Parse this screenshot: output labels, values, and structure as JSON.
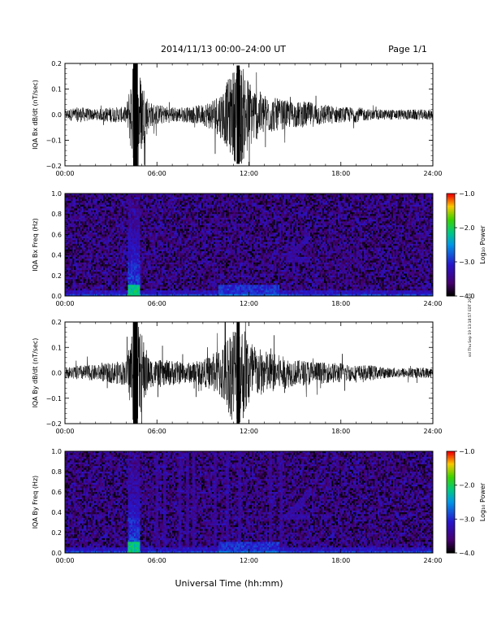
{
  "header": {
    "title": "2014/11/13  00:00–24:00 UT",
    "page": "Page 1/1"
  },
  "footer": {
    "xlabel": "Universal Time (hh:mm)",
    "stamp": "ssl Thu Sep 19 13:18:57 EDT 2019"
  },
  "colors": {
    "ink": "#000000",
    "spec_bg": "#3a0a62",
    "spec_mid": "#1a3ad8",
    "spec_hot": "#00d0c0"
  },
  "chart_data": [
    {
      "type": "line",
      "ylabel": "IQA Bx dB/dt (nT/sec)",
      "xlim": [
        0,
        24
      ],
      "ylim": [
        -0.2,
        0.2
      ],
      "xticks": [
        "00:00",
        "06:00",
        "12:00",
        "18:00",
        "24:00"
      ],
      "yticks": [
        "0.2",
        "0.1",
        "0.0",
        "−0.1",
        "−0.2"
      ],
      "x": [
        0,
        1,
        2,
        3,
        4,
        4.5,
        5,
        5.5,
        6,
        7,
        8,
        9,
        10,
        10.5,
        11,
        11.5,
        12,
        12.5,
        13,
        14,
        15,
        16,
        17,
        18,
        19,
        20,
        21,
        22,
        23,
        24
      ],
      "amplitude": [
        0.02,
        0.03,
        0.02,
        0.03,
        0.03,
        0.22,
        0.15,
        0.05,
        0.04,
        0.03,
        0.03,
        0.04,
        0.08,
        0.12,
        0.18,
        0.2,
        0.14,
        0.1,
        0.08,
        0.06,
        0.05,
        0.05,
        0.04,
        0.03,
        0.03,
        0.02,
        0.02,
        0.02,
        0.02,
        0.02
      ]
    },
    {
      "type": "heatmap",
      "ylabel": "IQA Bx Freq (Hz)",
      "colorbar_label": "Log₁₀ Power",
      "colorbar_ticks": [
        "−1.0",
        "−2.0",
        "−3.0",
        "−4.0"
      ],
      "clim": [
        -4.0,
        -1.0
      ],
      "xlim": [
        0,
        24
      ],
      "ylim": [
        0,
        1.0
      ],
      "xticks": [
        "00:00",
        "06:00",
        "12:00",
        "18:00",
        "24:00"
      ],
      "yticks": [
        "1.0",
        "0.8",
        "0.6",
        "0.4",
        "0.2",
        "0.0"
      ],
      "features": [
        {
          "kind": "burst",
          "t": 4.5,
          "fmax": 1.0,
          "level": -2.6
        },
        {
          "kind": "lowband",
          "t0": 0,
          "t1": 24,
          "fmax": 0.05,
          "level": -3.0
        },
        {
          "kind": "lowband",
          "t0": 10,
          "t1": 14,
          "fmax": 0.1,
          "level": -2.8
        },
        {
          "kind": "rising_tone",
          "t0": 14.5,
          "t1": 16,
          "f0": 0.35,
          "f1": 0.6,
          "level": -3.2
        }
      ]
    },
    {
      "type": "line",
      "ylabel": "IQA By dB/dt (nT/sec)",
      "xlim": [
        0,
        24
      ],
      "ylim": [
        -0.2,
        0.2
      ],
      "xticks": [
        "00:00",
        "06:00",
        "12:00",
        "18:00",
        "24:00"
      ],
      "yticks": [
        "0.2",
        "0.1",
        "0.0",
        "−0.1",
        "−0.2"
      ],
      "x": [
        0,
        1,
        2,
        3,
        4,
        4.5,
        5,
        5.5,
        6,
        7,
        8,
        9,
        10,
        10.5,
        11,
        11.5,
        12,
        12.5,
        13,
        14,
        15,
        16,
        17,
        18,
        19,
        20,
        21,
        22,
        23,
        24
      ],
      "amplitude": [
        0.02,
        0.03,
        0.03,
        0.04,
        0.05,
        0.22,
        0.16,
        0.06,
        0.05,
        0.05,
        0.04,
        0.05,
        0.09,
        0.14,
        0.2,
        0.2,
        0.15,
        0.1,
        0.09,
        0.07,
        0.05,
        0.05,
        0.04,
        0.04,
        0.03,
        0.03,
        0.02,
        0.02,
        0.02,
        0.02
      ]
    },
    {
      "type": "heatmap",
      "ylabel": "IQA By Freq (Hz)",
      "colorbar_label": "Log₁₀ Power",
      "colorbar_ticks": [
        "−1.0",
        "−2.0",
        "−3.0",
        "−4.0"
      ],
      "clim": [
        -4.0,
        -1.0
      ],
      "xlim": [
        0,
        24
      ],
      "ylim": [
        0,
        1.0
      ],
      "xticks": [
        "00:00",
        "06:00",
        "12:00",
        "18:00",
        "24:00"
      ],
      "yticks": [
        "1.0",
        "0.8",
        "0.6",
        "0.4",
        "0.2",
        "0.0"
      ],
      "features": [
        {
          "kind": "burst",
          "t": 4.5,
          "fmax": 1.0,
          "level": -2.6
        },
        {
          "kind": "lowband",
          "t0": 0,
          "t1": 24,
          "fmax": 0.05,
          "level": -3.0
        },
        {
          "kind": "lowband",
          "t0": 10,
          "t1": 14,
          "fmax": 0.1,
          "level": -2.8
        },
        {
          "kind": "rising_tone",
          "t0": 14.5,
          "t1": 16,
          "f0": 0.35,
          "f1": 0.6,
          "level": -3.2
        }
      ],
      "vertical_streaks_h": [
        6.0,
        6.5,
        7.5,
        8.0,
        8.4,
        9.8,
        10.6,
        11.4,
        13.4,
        14.1
      ]
    }
  ]
}
